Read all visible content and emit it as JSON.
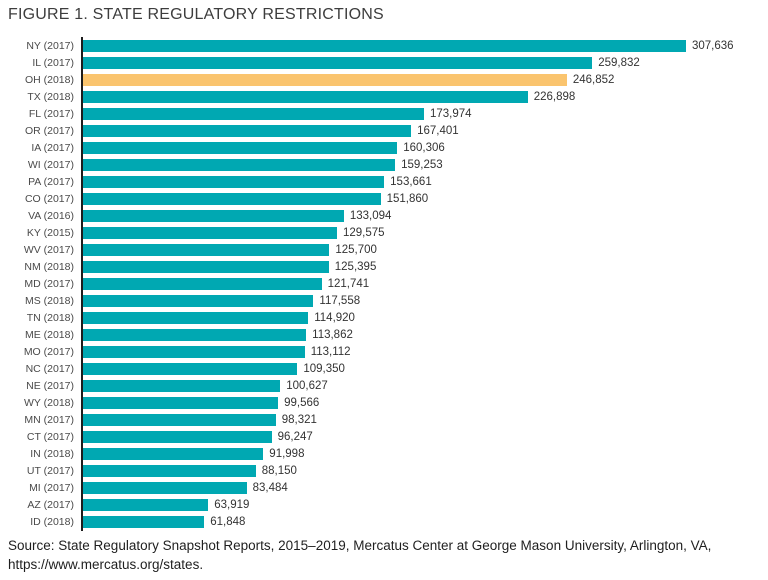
{
  "figure": {
    "title": "FIGURE 1. STATE REGULATORY RESTRICTIONS",
    "source_line1": "Source: State Regulatory Snapshot Reports, 2015–2019, Mercatus Center at George Mason University, Arlington, VA,",
    "source_line2": "https://www.mercatus.org/states."
  },
  "colors": {
    "bar": "#00a8b2",
    "highlight": "#fac46e",
    "axis": "#1c1c1c",
    "title_text": "#3d3d3d",
    "label_text": "#4a4a4a",
    "value_text": "#333333"
  },
  "chart_data": {
    "type": "bar",
    "orientation": "horizontal",
    "title": "FIGURE 1. STATE REGULATORY RESTRICTIONS",
    "xlabel": "",
    "ylabel": "",
    "grid": false,
    "legend": "none",
    "value_range": [
      0,
      307636
    ],
    "highlight_index": 2,
    "highlight_category": "OH (2018)",
    "categories": [
      "NY (2017)",
      "IL (2017)",
      "OH (2018)",
      "TX (2018)",
      "FL (2017)",
      "OR (2017)",
      "IA (2017)",
      "WI (2017)",
      "PA (2017)",
      "CO (2017)",
      "VA (2016)",
      "KY (2015)",
      "WV (2017)",
      "NM (2018)",
      "MD (2017)",
      "MS (2018)",
      "TN (2018)",
      "ME (2018)",
      "MO (2017)",
      "NC (2017)",
      "NE (2017)",
      "WY (2018)",
      "MN (2017)",
      "CT (2017)",
      "IN (2018)",
      "UT (2017)",
      "MI (2017)",
      "AZ (2017)",
      "ID (2018)"
    ],
    "values": [
      307636,
      259832,
      246852,
      226898,
      173974,
      167401,
      160306,
      159253,
      153661,
      151860,
      133094,
      129575,
      125700,
      125395,
      121741,
      117558,
      114920,
      113862,
      113112,
      109350,
      100627,
      99566,
      98321,
      96247,
      91998,
      88150,
      83484,
      63919,
      61848
    ],
    "value_labels": [
      "307,636",
      "259,832",
      "246,852",
      "226,898",
      "173,974",
      "167,401",
      "160,306",
      "159,253",
      "153,661",
      "151,860",
      "133,094",
      "129,575",
      "125,700",
      "125,395",
      "121,741",
      "117,558",
      "114,920",
      "113,862",
      "113,112",
      "109,350",
      "100,627",
      "99,566",
      "98,321",
      "96,247",
      "91,998",
      "88,150",
      "83,484",
      "63,919",
      "61,848"
    ]
  }
}
